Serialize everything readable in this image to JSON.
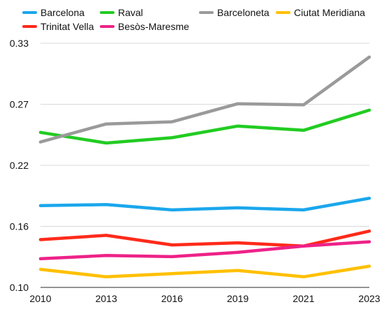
{
  "chart_data": {
    "type": "line",
    "title": "",
    "xlabel": "",
    "ylabel": "",
    "x": [
      "2010",
      "2013",
      "2016",
      "2019",
      "2021",
      "2023"
    ],
    "y_ticks": [
      "0.33",
      "0.27",
      "0.22",
      "0.16",
      "0.10"
    ],
    "ylim": [
      0.1,
      0.33
    ],
    "grid": "horizontal",
    "legend_position": "top",
    "series": [
      {
        "name": "Barcelona",
        "color": "#1aa7ec",
        "values": [
          0.177,
          0.178,
          0.173,
          0.175,
          0.173,
          0.184
        ]
      },
      {
        "name": "Raval",
        "color": "#22cc22",
        "values": [
          0.246,
          0.236,
          0.241,
          0.252,
          0.248,
          0.267
        ]
      },
      {
        "name": "Barceloneta",
        "color": "#9a9a9a",
        "values": [
          0.237,
          0.254,
          0.256,
          0.273,
          0.272,
          0.317
        ]
      },
      {
        "name": "Ciutat Meridiana",
        "color": "#ffc000",
        "values": [
          0.117,
          0.11,
          0.113,
          0.116,
          0.11,
          0.12
        ]
      },
      {
        "name": "Trinitat Vella",
        "color": "#ff2a1a",
        "values": [
          0.145,
          0.149,
          0.14,
          0.142,
          0.139,
          0.153
        ]
      },
      {
        "name": "Besòs-Maresme",
        "color": "#ee2288",
        "values": [
          0.127,
          0.13,
          0.129,
          0.133,
          0.139,
          0.143
        ]
      }
    ]
  }
}
